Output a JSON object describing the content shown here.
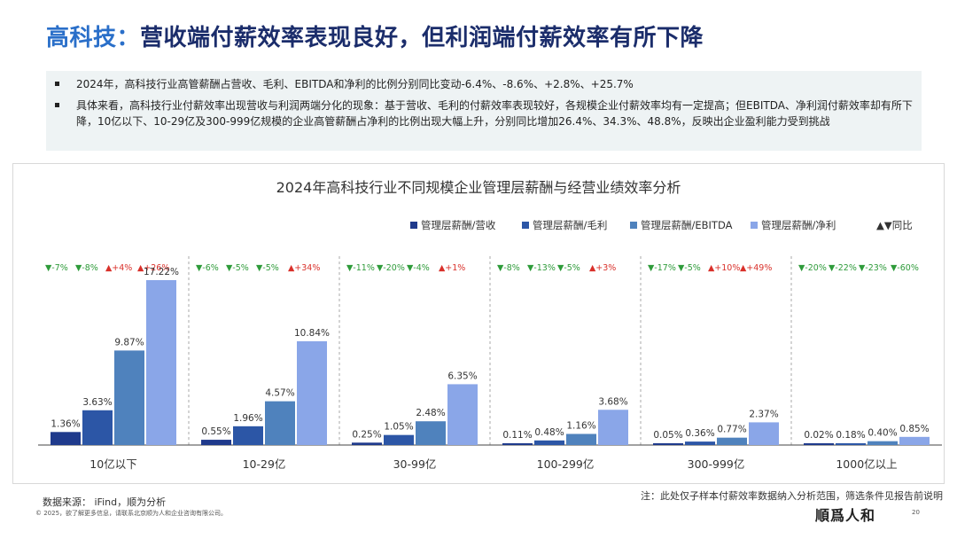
{
  "title": {
    "highlight": "高科技：",
    "rest": "营收端付薪效率表现良好，但利润端付薪效率有所下降"
  },
  "summary": {
    "bullet1": "2024年，高科技行业高管薪酬占营收、毛利、EBITDA和净利的比例分别同比变动-6.4%、-8.6%、+2.8%、+25.7%",
    "bullet2": "具体来看，高科技行业付薪效率出现营收与利润两端分化的现象：基于营收、毛利的付薪效率表现较好，各规模企业付薪效率均有一定提高；但EBITDA、净利润付薪效率却有所下降，10亿以下、10-29亿及300-999亿规模的企业高管薪酬占净利的比例出现大幅上升，分别同比增加26.4%、34.3%、48.8%，反映出企业盈利能力受到挑战"
  },
  "footer": {
    "source": "数据来源： iFind，顺为分析",
    "note": "注：此处仅子样本付薪效率数据纳入分析范围，筛选条件见报告前说明",
    "copyright": "© 2025，欲了解更多信息，请联系北京顺为人和企业咨询有限公司。",
    "logo": "順爲人和",
    "page": "20"
  },
  "chart_data": {
    "type": "bar",
    "title": "2024年高科技行业不同规模企业管理层薪酬与经营业绩效率分析",
    "categories": [
      "10亿以下",
      "10-29亿",
      "30-99亿",
      "100-299亿",
      "300-999亿",
      "1000亿以上"
    ],
    "series": [
      {
        "name": "管理层薪酬/营收",
        "color": "#1f3a8c",
        "values": [
          1.36,
          0.55,
          0.25,
          0.11,
          0.05,
          0.02
        ],
        "labels": [
          "1.36%",
          "0.55%",
          "0.25%",
          "0.11%",
          "0.05%",
          "0.02%"
        ],
        "yoy": [
          "-7%",
          "-6%",
          "-11%",
          "-8%",
          "-17%",
          "-20%"
        ]
      },
      {
        "name": "管理层薪酬/毛利",
        "color": "#2c56a6",
        "values": [
          3.63,
          1.96,
          1.05,
          0.48,
          0.36,
          0.18
        ],
        "labels": [
          "3.63%",
          "1.96%",
          "1.05%",
          "0.48%",
          "0.36%",
          "0.18%"
        ],
        "yoy": [
          "-8%",
          "-5%",
          "-20%",
          "-13%",
          "-5%",
          "-22%"
        ]
      },
      {
        "name": "管理层薪酬/EBITDA",
        "color": "#4f82bd",
        "values": [
          9.87,
          4.57,
          2.48,
          1.16,
          0.77,
          0.4
        ],
        "labels": [
          "9.87%",
          "4.57%",
          "2.48%",
          "1.16%",
          "0.77%",
          "0.40%"
        ],
        "yoy": [
          "+4%",
          "-5%",
          "-4%",
          "-5%",
          "+10%",
          "-23%"
        ]
      },
      {
        "name": "管理层薪酬/净利",
        "color": "#8aa6e8",
        "values": [
          17.22,
          10.84,
          6.35,
          3.68,
          2.37,
          0.85
        ],
        "labels": [
          "17.22%",
          "10.84%",
          "6.35%",
          "3.68%",
          "2.37%",
          "0.85%"
        ],
        "yoy": [
          "+26%",
          "+34%",
          "+1%",
          "+3%",
          "+49%",
          "-60%"
        ]
      }
    ],
    "yoy_legend": "▲▼同比",
    "ylim": [
      0,
      17.22
    ],
    "colors": {
      "up": "#d9312b",
      "down": "#2e9b3a"
    }
  }
}
